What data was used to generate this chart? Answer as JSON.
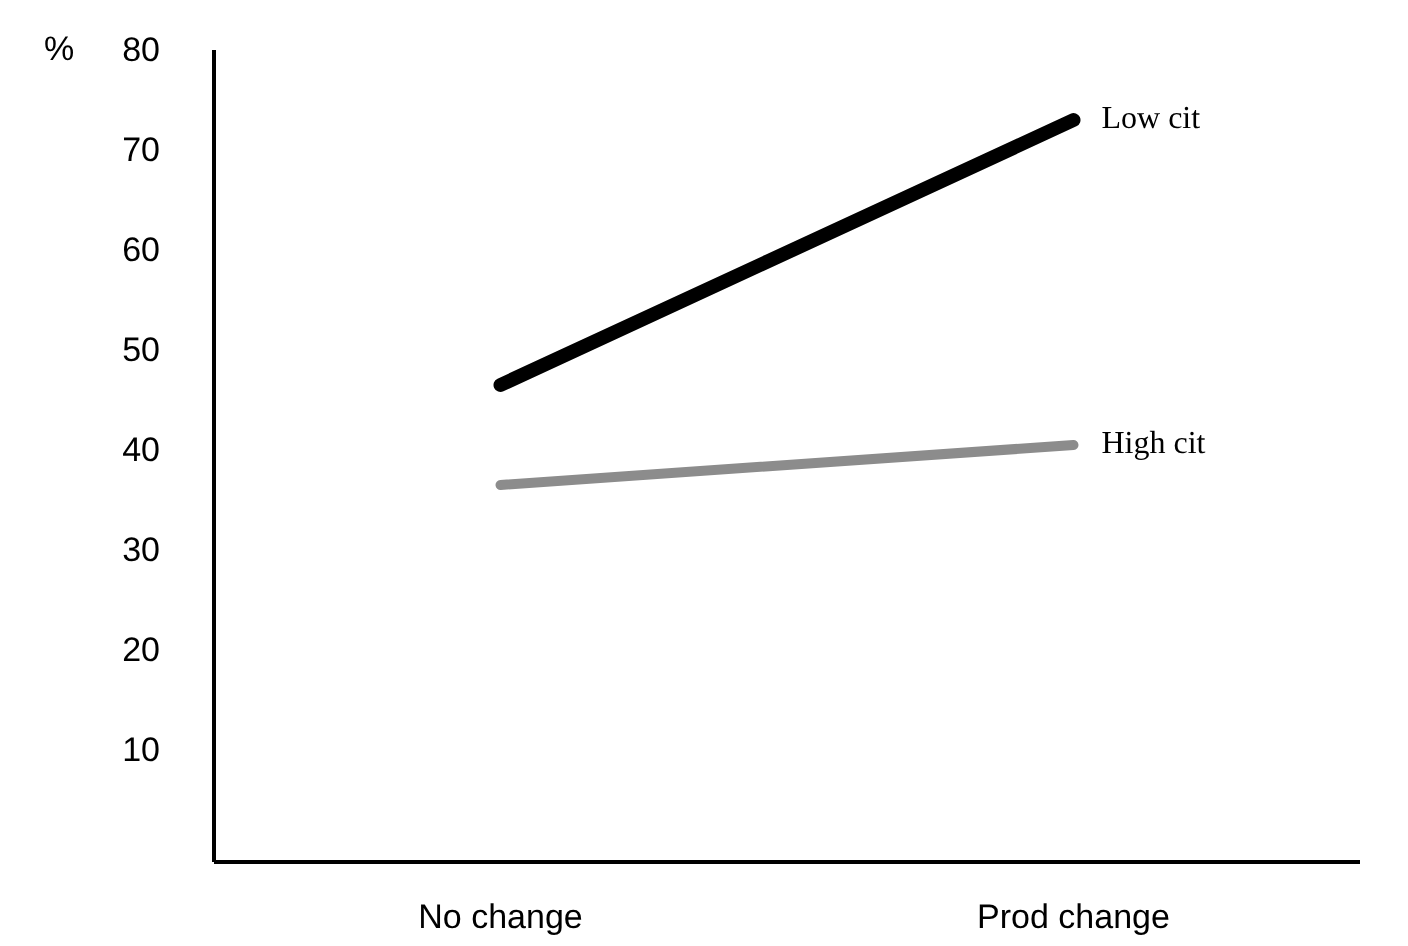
{
  "chart_data": {
    "type": "line",
    "ylabel": "%",
    "categories": [
      "No change",
      "Prod change"
    ],
    "ylim": [
      0,
      80
    ],
    "yticks": [
      10,
      20,
      30,
      40,
      50,
      60,
      70,
      80
    ],
    "grid": false,
    "marker": "none",
    "series": [
      {
        "name": "Low cit",
        "color": "#000000",
        "values": [
          46.5,
          73
        ]
      },
      {
        "name": "High cit",
        "color": "#8c8c8c",
        "values": [
          36.5,
          40.5
        ]
      }
    ]
  }
}
